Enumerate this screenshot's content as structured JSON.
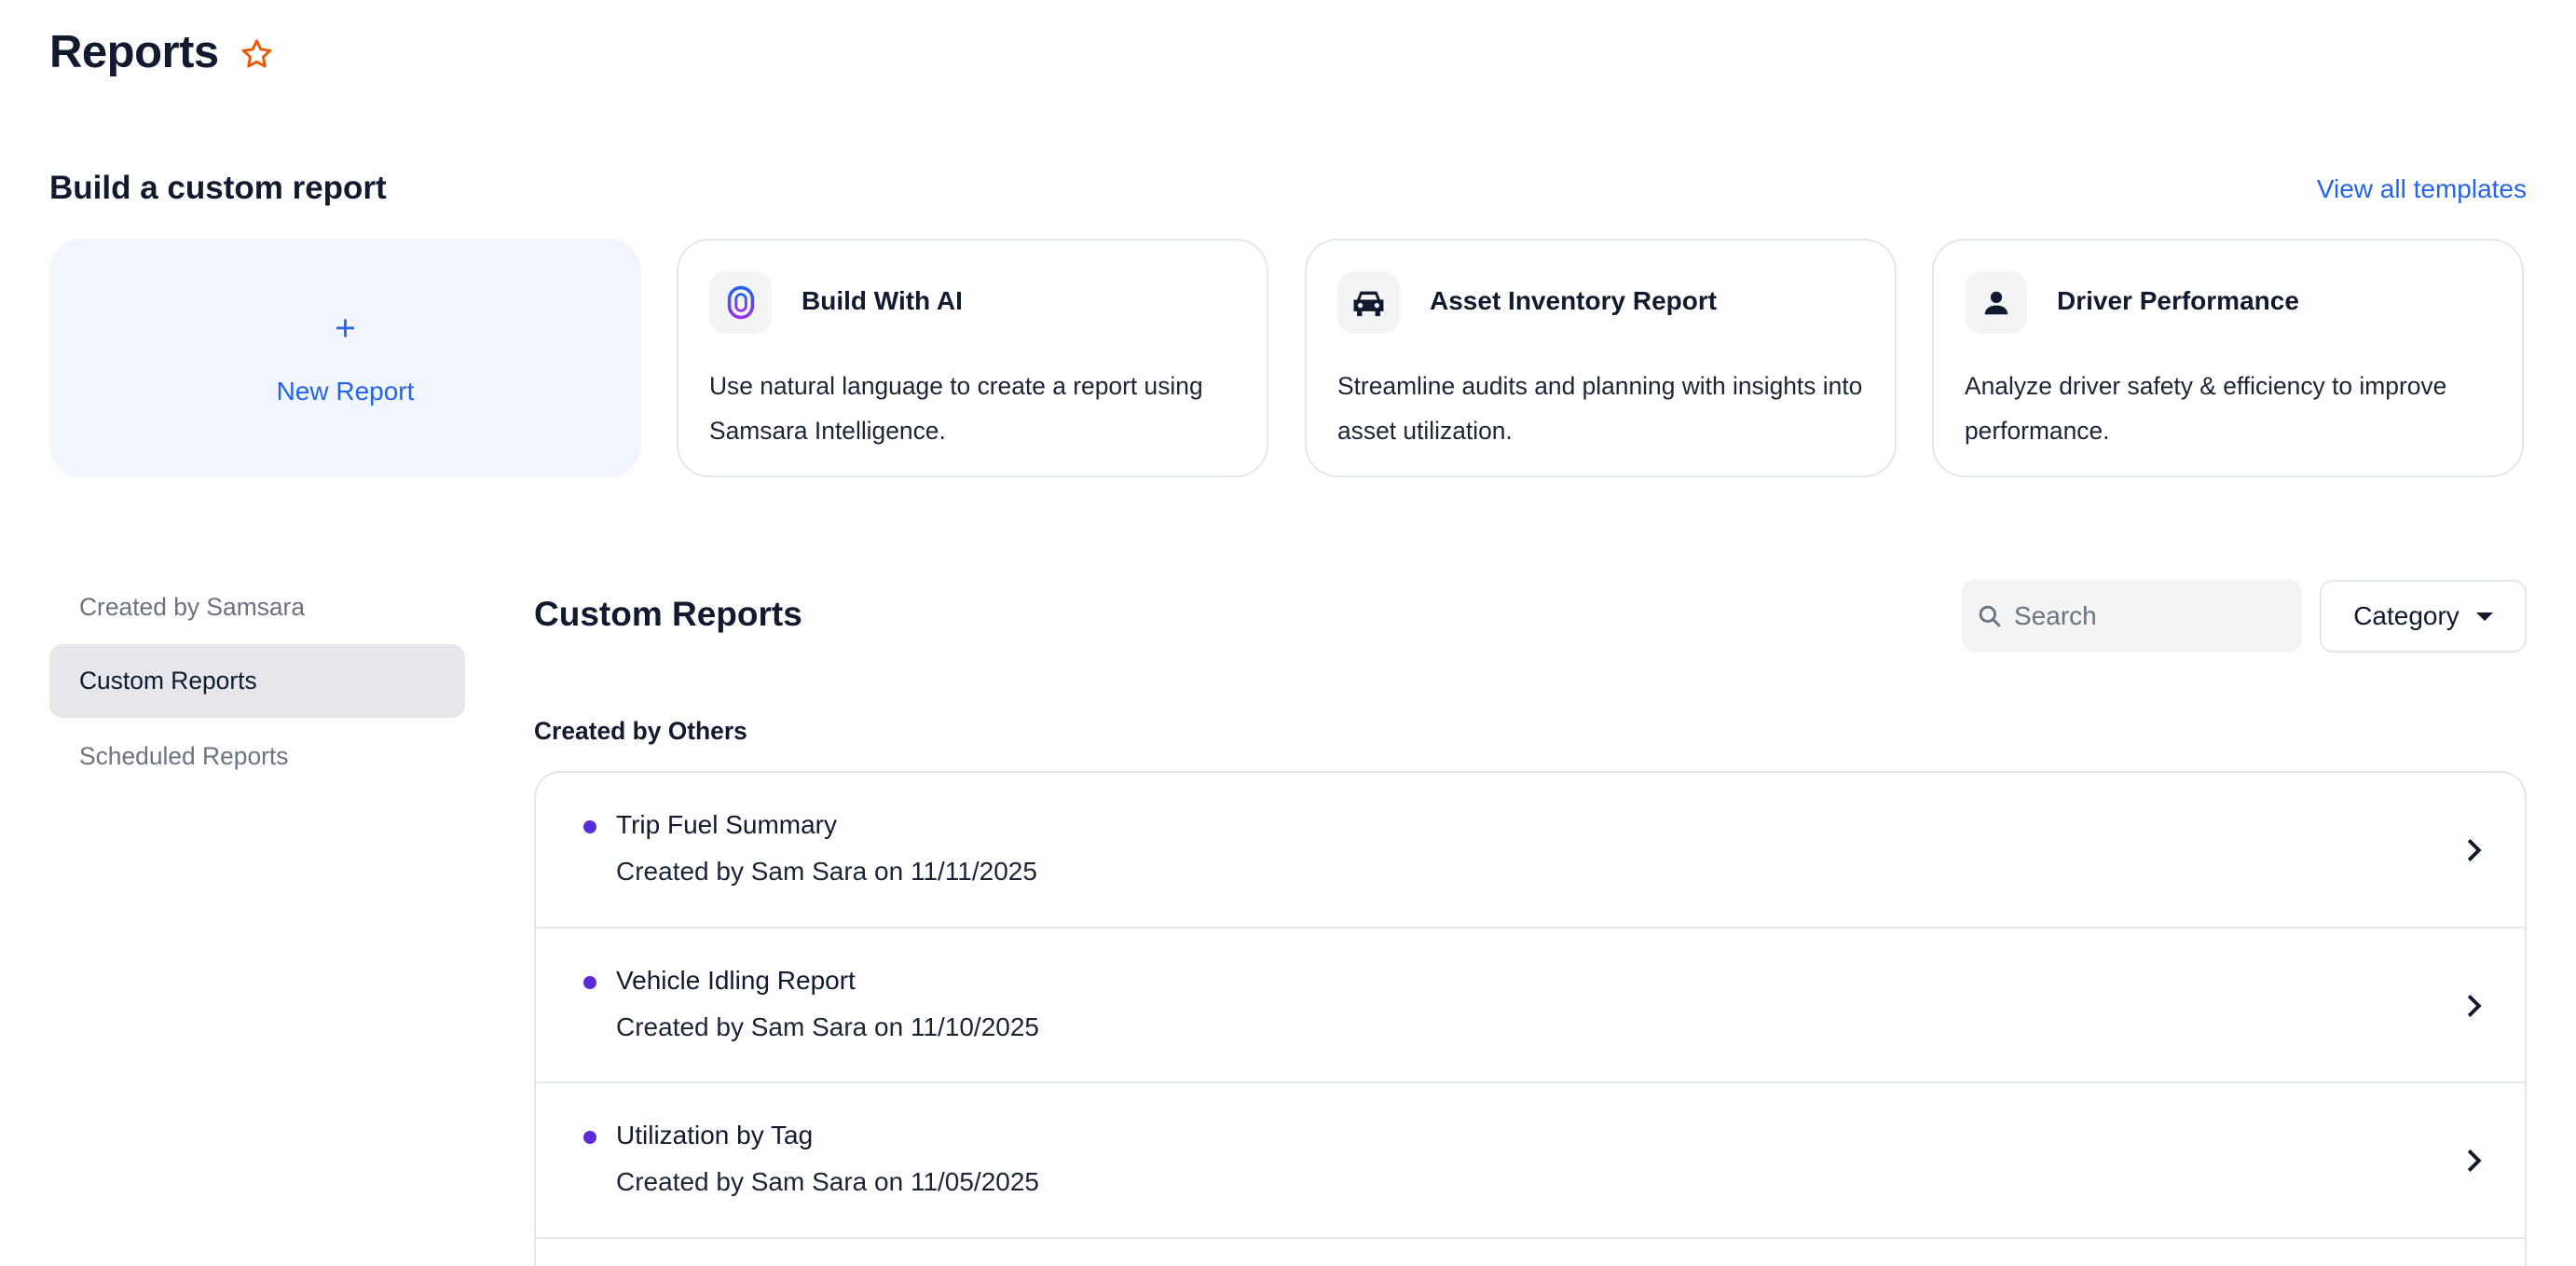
{
  "page": {
    "title": "Reports",
    "favorite_icon": "star-outline-icon",
    "accent": "#e8590c"
  },
  "build": {
    "heading": "Build a custom report",
    "view_all": "View all templates",
    "new_report": {
      "icon": "plus-icon",
      "label": "New Report"
    },
    "templates": [
      {
        "icon": "fingerprint-ai-icon",
        "title": "Build With AI",
        "description": "Use natural language to create a report using Samsara Intelligence."
      },
      {
        "icon": "car-icon",
        "title": "Asset Inventory Report",
        "description": "Streamline audits and planning with insights into asset utilization."
      },
      {
        "icon": "person-icon",
        "title": "Driver Performance",
        "description": "Analyze driver safety & efficiency to improve performance."
      }
    ]
  },
  "sidebar": {
    "items": [
      {
        "label": "Created by Samsara",
        "active": false
      },
      {
        "label": "Custom Reports",
        "active": true
      },
      {
        "label": "Scheduled Reports",
        "active": false
      }
    ]
  },
  "main": {
    "heading": "Custom Reports",
    "search": {
      "placeholder": "Search",
      "value": ""
    },
    "category": {
      "label": "Category"
    },
    "section": "Created by Others",
    "reports": [
      {
        "title": "Trip Fuel Summary",
        "subtitle": "Created by Sam Sara on 11/11/2025"
      },
      {
        "title": "Vehicle Idling Report",
        "subtitle": "Created by Sam Sara on 11/10/2025"
      },
      {
        "title": "Utilization by Tag",
        "subtitle": "Created by Sam Sara on 11/05/2025"
      }
    ],
    "status_dot_color": "#5b2bd6"
  }
}
